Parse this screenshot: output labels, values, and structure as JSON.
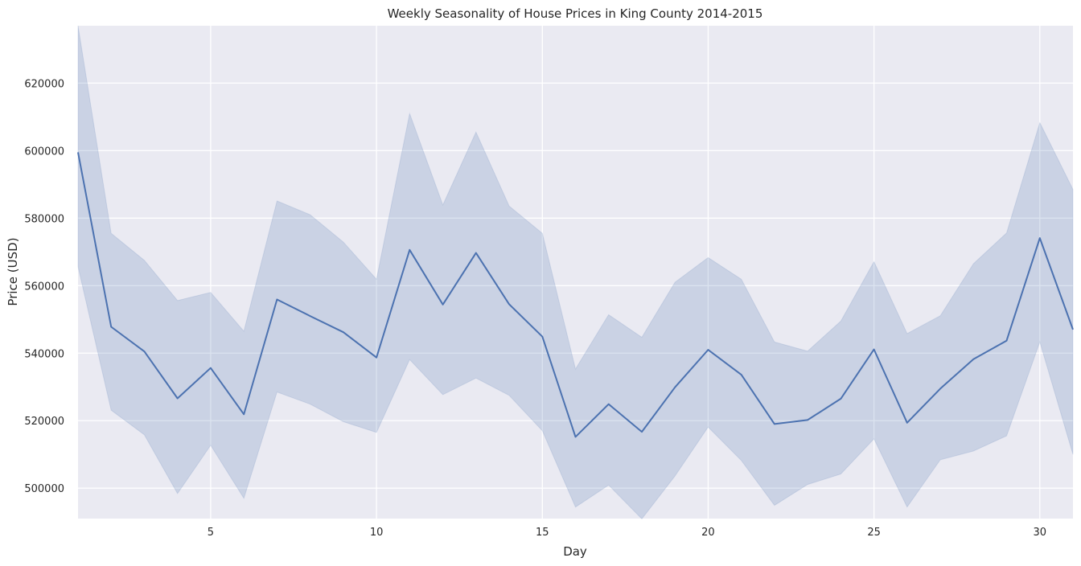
{
  "chart_data": {
    "type": "line",
    "title": "Weekly Seasonality of House Prices in King County 2014-2015",
    "xlabel": "Day",
    "ylabel": "Price (USD)",
    "xlim": [
      1,
      31
    ],
    "ylim": [
      491000,
      637000
    ],
    "x_ticks": [
      5,
      10,
      15,
      20,
      25,
      30
    ],
    "y_ticks": [
      500000,
      520000,
      540000,
      560000,
      580000,
      600000,
      620000
    ],
    "grid": true,
    "colors": {
      "background": "#eaeaf2",
      "line": "#4c72b0",
      "band": "#4c72b0",
      "grid": "#ffffff"
    },
    "series": [
      {
        "x": [
          1,
          2,
          3,
          4,
          5,
          6,
          7,
          8,
          9,
          10,
          11,
          12,
          13,
          14,
          15,
          16,
          17,
          18,
          19,
          20,
          21,
          22,
          23,
          24,
          25,
          26,
          27,
          28,
          29,
          30,
          31
        ],
        "values": [
          599500,
          547800,
          540500,
          526600,
          535600,
          521900,
          555900,
          551000,
          546200,
          538700,
          570600,
          554400,
          569700,
          554500,
          544900,
          515200,
          524900,
          516700,
          529900,
          541000,
          533600,
          519000,
          520200,
          526500,
          541100,
          519400,
          529500,
          538200,
          543700,
          574100,
          547000
        ],
        "ci_upper": [
          637000,
          575500,
          567500,
          555600,
          558000,
          546500,
          585100,
          581000,
          572900,
          561900,
          611000,
          583900,
          605500,
          583600,
          575500,
          535300,
          551400,
          544700,
          561000,
          568300,
          561900,
          543300,
          540600,
          549500,
          567100,
          545800,
          551100,
          566500,
          575600,
          608300,
          588500
        ],
        "ci_lower": [
          565600,
          523100,
          515800,
          498400,
          512700,
          497000,
          528500,
          524900,
          519700,
          516500,
          538100,
          527700,
          532600,
          527500,
          517000,
          494400,
          500900,
          490900,
          503600,
          518100,
          508200,
          494900,
          501100,
          504200,
          514600,
          494400,
          508400,
          511000,
          515500,
          543300,
          510000
        ]
      }
    ]
  }
}
